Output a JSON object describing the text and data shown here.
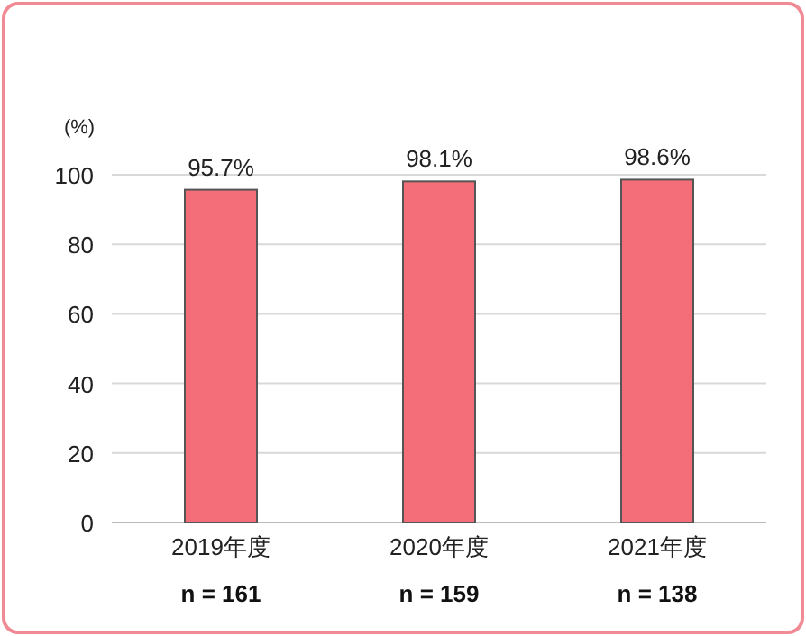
{
  "chart_data": {
    "type": "bar",
    "ylabel": "(%)",
    "categories": [
      "2019年度",
      "2020年度",
      "2021年度"
    ],
    "series": [
      {
        "color": "#f46e7a",
        "values": [
          95.7,
          98.1,
          98.6
        ]
      }
    ],
    "value_labels": [
      "95.7%",
      "98.1%",
      "98.6%"
    ],
    "annotations": [
      "n = 161",
      "n = 159",
      "n = 138"
    ],
    "ylim": [
      0,
      100
    ],
    "yticks": [
      0,
      20,
      40,
      60,
      80,
      100
    ],
    "grid": "y"
  }
}
